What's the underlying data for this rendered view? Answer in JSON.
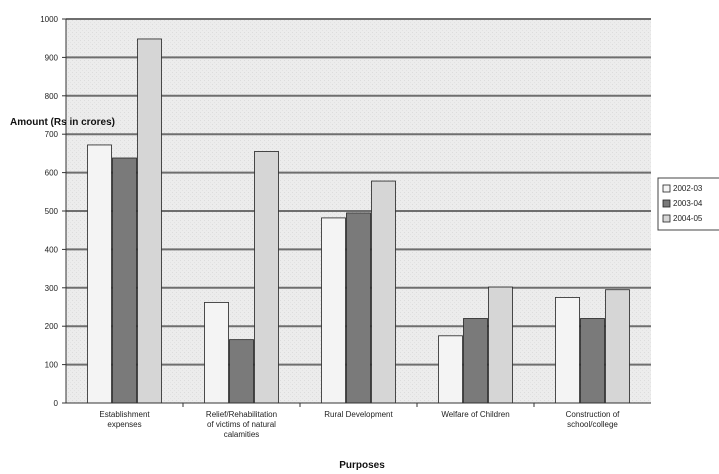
{
  "chart_data": {
    "type": "bar",
    "title": "",
    "xlabel": "Purposes",
    "ylabel": "Amount (Rs in crores)",
    "ylim": [
      0,
      1000
    ],
    "yticks": [
      0,
      100,
      200,
      300,
      400,
      500,
      600,
      700,
      800,
      900,
      1000
    ],
    "grid": true,
    "legend_position": "right",
    "categories": [
      [
        "Establishment",
        "expenses"
      ],
      [
        "Relief/Rehabilitation",
        "of victims of natural",
        "calamities"
      ],
      [
        "Rural Development"
      ],
      [
        "Welfare of Children"
      ],
      [
        "Construction of",
        "school/college"
      ]
    ],
    "series": [
      {
        "name": "2002-03",
        "color": "#f4f4f4",
        "values": [
          672,
          262,
          482,
          175,
          275
        ]
      },
      {
        "name": "2003-04",
        "color": "#7a7a7a",
        "values": [
          638,
          165,
          495,
          220,
          220
        ]
      },
      {
        "name": "2004-05",
        "color": "#d6d6d6",
        "values": [
          948,
          655,
          578,
          302,
          295
        ]
      }
    ]
  }
}
